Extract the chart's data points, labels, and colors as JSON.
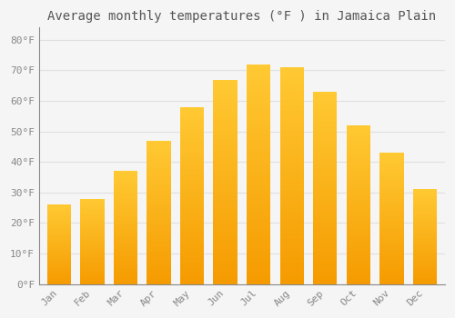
{
  "title": "Average monthly temperatures (°F ) in Jamaica Plain",
  "months": [
    "Jan",
    "Feb",
    "Mar",
    "Apr",
    "May",
    "Jun",
    "Jul",
    "Aug",
    "Sep",
    "Oct",
    "Nov",
    "Dec"
  ],
  "values": [
    26,
    28,
    37,
    47,
    58,
    67,
    72,
    71,
    63,
    52,
    43,
    31
  ],
  "bar_color_top": "#FFC933",
  "bar_color_bottom": "#F59B00",
  "background_color": "#F5F5F5",
  "grid_color": "#E0E0E0",
  "text_color": "#888888",
  "title_color": "#555555",
  "ylim": [
    0,
    84
  ],
  "yticks": [
    0,
    10,
    20,
    30,
    40,
    50,
    60,
    70,
    80
  ],
  "title_fontsize": 10,
  "tick_fontsize": 8,
  "font_family": "monospace"
}
